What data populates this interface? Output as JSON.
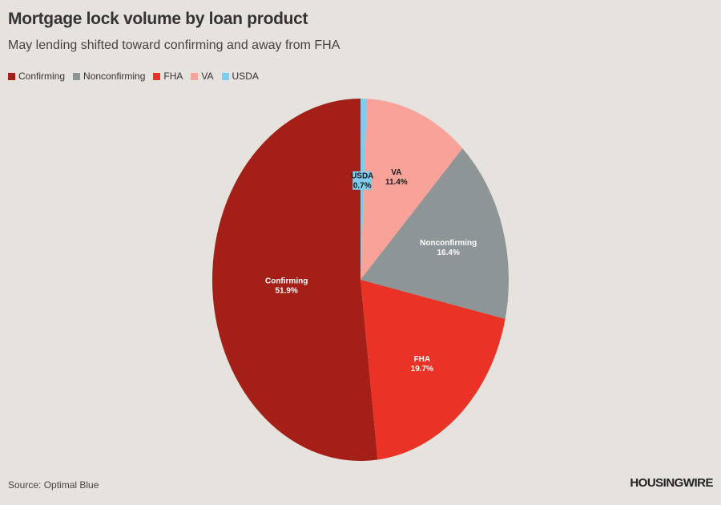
{
  "header": {
    "title": "Mortgage lock volume by loan product",
    "subtitle": "May lending shifted toward confirming and away from FHA"
  },
  "footer": {
    "source": "Source: Optimal Blue",
    "brand": "HOUSINGWIRE"
  },
  "chart_data": {
    "type": "pie",
    "title": "Mortgage lock volume by loan product",
    "subtitle": "May lending shifted toward confirming and away from FHA",
    "legend_position": "top-left",
    "slices": [
      {
        "name": "USDA",
        "value": 0.7,
        "label": "0.7%",
        "color": "#7fcdec",
        "text_color": "#1a1a1a",
        "label_bg": "#7fcdec"
      },
      {
        "name": "VA",
        "value": 11.4,
        "label": "11.4%",
        "color": "#f8a29a",
        "text_color": "#1a1a1a"
      },
      {
        "name": "Nonconfirming",
        "value": 16.4,
        "label": "16.4%",
        "color": "#8e9596",
        "text_color": "#ffffff"
      },
      {
        "name": "FHA",
        "value": 19.7,
        "label": "19.7%",
        "color": "#ea3326",
        "text_color": "#ffffff"
      },
      {
        "name": "Confirming",
        "value": 51.9,
        "label": "51.9%",
        "color": "#a31f17",
        "text_color": "#ffffff"
      }
    ],
    "legend": [
      {
        "name": "Confirming",
        "color": "#a31f17"
      },
      {
        "name": "Nonconfirming",
        "color": "#8e9596"
      },
      {
        "name": "FHA",
        "color": "#ea3326"
      },
      {
        "name": "VA",
        "color": "#f8a29a"
      },
      {
        "name": "USDA",
        "color": "#7fcdec"
      }
    ]
  }
}
